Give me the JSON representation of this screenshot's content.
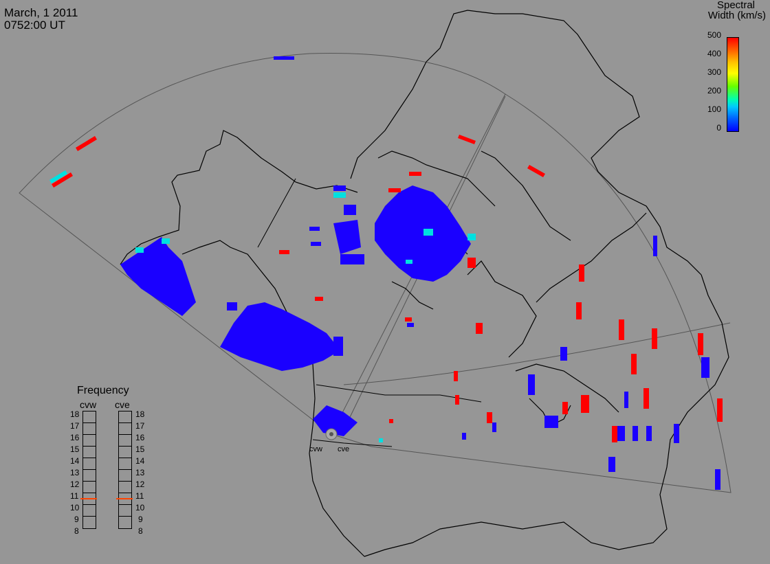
{
  "header": {
    "date": "March, 1 2011",
    "time": "0752:00 UT"
  },
  "colorbar": {
    "title_line1": "Spectral",
    "title_line2": "Width (km/s)",
    "ticks": [
      "500",
      "400",
      "300",
      "200",
      "100",
      "0"
    ],
    "colors": {
      "high": "#ff0000",
      "mid": "#ffff00",
      "low": "#0000ff"
    }
  },
  "frequency": {
    "title": "Frequency",
    "radars": [
      {
        "name": "cvw",
        "selected": 10.5
      },
      {
        "name": "cve",
        "selected": 10.5
      }
    ],
    "scale": [
      "18",
      "17",
      "16",
      "15",
      "14",
      "13",
      "12",
      "11",
      "10",
      "9",
      "8"
    ],
    "marker_color": "#ff4400"
  },
  "sites": [
    {
      "name": "cvw"
    },
    {
      "name": "cve"
    }
  ],
  "colors": {
    "background": "#969696",
    "coastline": "#000000",
    "scatter_blue": "#1a00ff",
    "scatter_red": "#ff0000",
    "scatter_cyan": "#00e0e0"
  }
}
